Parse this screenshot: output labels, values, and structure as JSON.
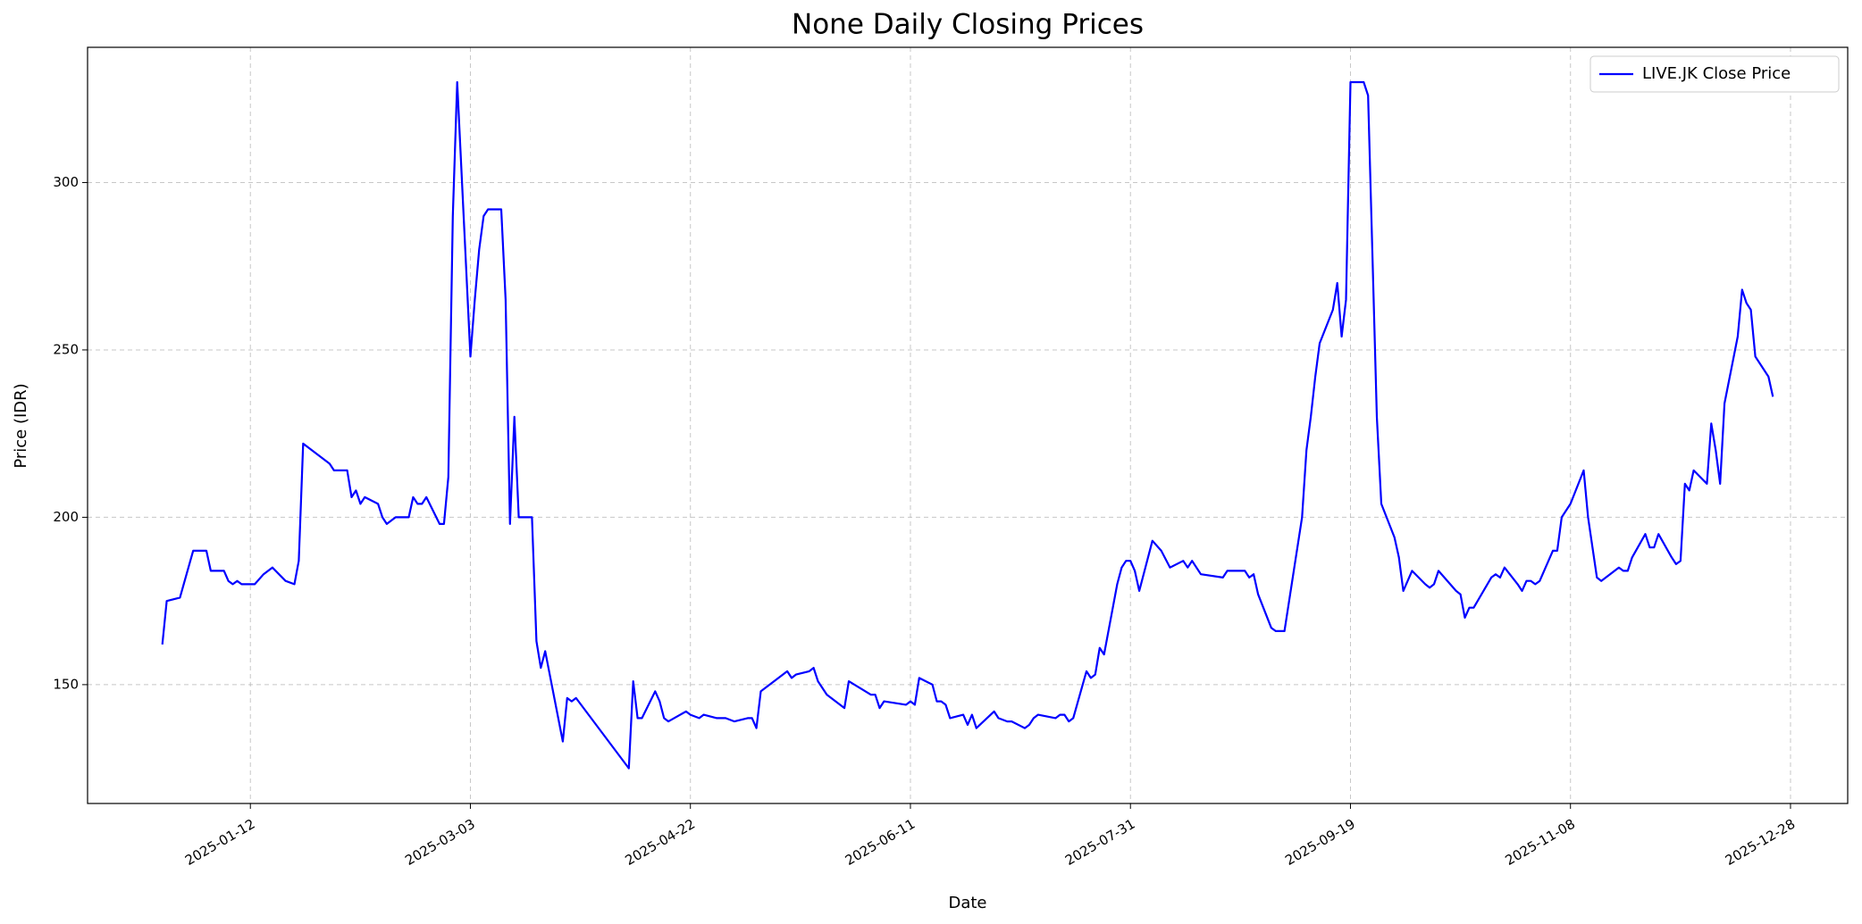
{
  "chart_data": {
    "type": "line",
    "title": "None Daily Closing Prices",
    "x_label": "Date",
    "y_label": "Price (IDR)",
    "x": [
      "2024-12-23",
      "2024-12-24",
      "2024-12-27",
      "2024-12-30",
      "2025-01-02",
      "2025-01-03",
      "2025-01-06",
      "2025-01-07",
      "2025-01-08",
      "2025-01-09",
      "2025-01-10",
      "2025-01-13",
      "2025-01-15",
      "2025-01-17",
      "2025-01-20",
      "2025-01-22",
      "2025-01-23",
      "2025-01-24",
      "2025-01-30",
      "2025-01-31",
      "2025-02-03",
      "2025-02-04",
      "2025-02-05",
      "2025-02-06",
      "2025-02-07",
      "2025-02-10",
      "2025-02-11",
      "2025-02-12",
      "2025-02-14",
      "2025-02-17",
      "2025-02-18",
      "2025-02-19",
      "2025-02-20",
      "2025-02-21",
      "2025-02-24",
      "2025-02-25",
      "2025-02-26",
      "2025-02-27",
      "2025-02-28",
      "2025-03-03",
      "2025-03-04",
      "2025-03-05",
      "2025-03-06",
      "2025-03-07",
      "2025-03-10",
      "2025-03-11",
      "2025-03-12",
      "2025-03-13",
      "2025-03-14",
      "2025-03-17",
      "2025-03-18",
      "2025-03-19",
      "2025-03-20",
      "2025-03-24",
      "2025-03-25",
      "2025-03-26",
      "2025-03-27",
      "2025-04-08",
      "2025-04-09",
      "2025-04-10",
      "2025-04-11",
      "2025-04-14",
      "2025-04-15",
      "2025-04-16",
      "2025-04-17",
      "2025-04-21",
      "2025-04-22",
      "2025-04-24",
      "2025-04-25",
      "2025-04-28",
      "2025-04-30",
      "2025-05-02",
      "2025-05-05",
      "2025-05-06",
      "2025-05-07",
      "2025-05-08",
      "2025-05-14",
      "2025-05-15",
      "2025-05-16",
      "2025-05-19",
      "2025-05-20",
      "2025-05-21",
      "2025-05-23",
      "2025-05-27",
      "2025-05-28",
      "2025-06-02",
      "2025-06-03",
      "2025-06-04",
      "2025-06-05",
      "2025-06-10",
      "2025-06-11",
      "2025-06-12",
      "2025-06-13",
      "2025-06-16",
      "2025-06-17",
      "2025-06-18",
      "2025-06-19",
      "2025-06-20",
      "2025-06-23",
      "2025-06-24",
      "2025-06-25",
      "2025-06-26",
      "2025-06-30",
      "2025-07-01",
      "2025-07-03",
      "2025-07-04",
      "2025-07-07",
      "2025-07-08",
      "2025-07-09",
      "2025-07-10",
      "2025-07-14",
      "2025-07-15",
      "2025-07-16",
      "2025-07-17",
      "2025-07-18",
      "2025-07-21",
      "2025-07-22",
      "2025-07-23",
      "2025-07-24",
      "2025-07-25",
      "2025-07-28",
      "2025-07-29",
      "2025-07-30",
      "2025-07-31",
      "2025-08-01",
      "2025-08-02",
      "2025-08-05",
      "2025-08-07",
      "2025-08-09",
      "2025-08-12",
      "2025-08-13",
      "2025-08-14",
      "2025-08-16",
      "2025-08-21",
      "2025-08-22",
      "2025-08-26",
      "2025-08-27",
      "2025-08-28",
      "2025-08-29",
      "2025-09-01",
      "2025-09-02",
      "2025-09-04",
      "2025-09-08",
      "2025-09-09",
      "2025-09-10",
      "2025-09-11",
      "2025-09-12",
      "2025-09-15",
      "2025-09-16",
      "2025-09-17",
      "2025-09-18",
      "2025-09-19",
      "2025-09-22",
      "2025-09-23",
      "2025-09-25",
      "2025-09-26",
      "2025-09-29",
      "2025-09-30",
      "2025-10-01",
      "2025-10-02",
      "2025-10-03",
      "2025-10-06",
      "2025-10-07",
      "2025-10-08",
      "2025-10-09",
      "2025-10-13",
      "2025-10-14",
      "2025-10-15",
      "2025-10-16",
      "2025-10-17",
      "2025-10-21",
      "2025-10-22",
      "2025-10-23",
      "2025-10-24",
      "2025-10-27",
      "2025-10-28",
      "2025-10-29",
      "2025-10-30",
      "2025-10-31",
      "2025-11-01",
      "2025-11-04",
      "2025-11-05",
      "2025-11-06",
      "2025-11-08",
      "2025-11-11",
      "2025-11-12",
      "2025-11-14",
      "2025-11-15",
      "2025-11-19",
      "2025-11-20",
      "2025-11-21",
      "2025-11-22",
      "2025-11-25",
      "2025-11-26",
      "2025-11-27",
      "2025-11-28",
      "2025-12-01",
      "2025-12-02",
      "2025-12-03",
      "2025-12-04",
      "2025-12-05",
      "2025-12-06",
      "2025-12-09",
      "2025-12-10",
      "2025-12-11",
      "2025-12-12",
      "2025-12-13",
      "2025-12-16",
      "2025-12-17",
      "2025-12-18",
      "2025-12-19",
      "2025-12-20",
      "2025-12-23",
      "2025-12-24"
    ],
    "series": [
      {
        "name": "LIVE.JK Close Price",
        "color": "#0000ff",
        "values": [
          162,
          175,
          176,
          190,
          190,
          184,
          184,
          181,
          180,
          181,
          180,
          180,
          183,
          185,
          181,
          180,
          187,
          222,
          216,
          214,
          214,
          206,
          208,
          204,
          206,
          204,
          200,
          198,
          200,
          200,
          206,
          204,
          204,
          206,
          198,
          198,
          212,
          290,
          330,
          248,
          265,
          280,
          290,
          292,
          292,
          265,
          198,
          230,
          200,
          200,
          163,
          155,
          160,
          133,
          146,
          145,
          146,
          125,
          151,
          140,
          140,
          148,
          145,
          140,
          139,
          142,
          141,
          140,
          141,
          140,
          140,
          139,
          140,
          140,
          137,
          148,
          154,
          152,
          153,
          154,
          155,
          151,
          147,
          143,
          151,
          147,
          147,
          143,
          145,
          144,
          145,
          144,
          152,
          150,
          145,
          145,
          144,
          140,
          141,
          138,
          141,
          137,
          142,
          140,
          139,
          139,
          137,
          138,
          140,
          141,
          140,
          141,
          141,
          139,
          140,
          154,
          152,
          153,
          161,
          159,
          180,
          185,
          187,
          187,
          184,
          178,
          193,
          190,
          185,
          187,
          185,
          187,
          183,
          182,
          184,
          184,
          182,
          183,
          177,
          167,
          166,
          166,
          200,
          220,
          230,
          242,
          252,
          262,
          270,
          254,
          265,
          330,
          330,
          326,
          230,
          204,
          194,
          188,
          178,
          181,
          184,
          180,
          179,
          180,
          184,
          178,
          177,
          170,
          173,
          173,
          182,
          183,
          182,
          185,
          180,
          178,
          181,
          181,
          180,
          181,
          190,
          190,
          200,
          204,
          214,
          200,
          182,
          181,
          185,
          184,
          184,
          188,
          195,
          191,
          191,
          195,
          188,
          186,
          187,
          210,
          208,
          214,
          210,
          228,
          220,
          210,
          234,
          254,
          268,
          264,
          262,
          248,
          242,
          236
        ]
      }
    ],
    "xlim": [
      "2024-12-06",
      "2026-01-10"
    ],
    "xticks": [
      "2025-01-12",
      "2025-03-03",
      "2025-04-22",
      "2025-06-11",
      "2025-07-31",
      "2025-09-19",
      "2025-11-08",
      "2025-12-28"
    ],
    "ylim": [
      114.5,
      340.4
    ],
    "yticks": [
      150,
      200,
      250,
      300
    ],
    "grid": true,
    "legend": "upper right"
  }
}
